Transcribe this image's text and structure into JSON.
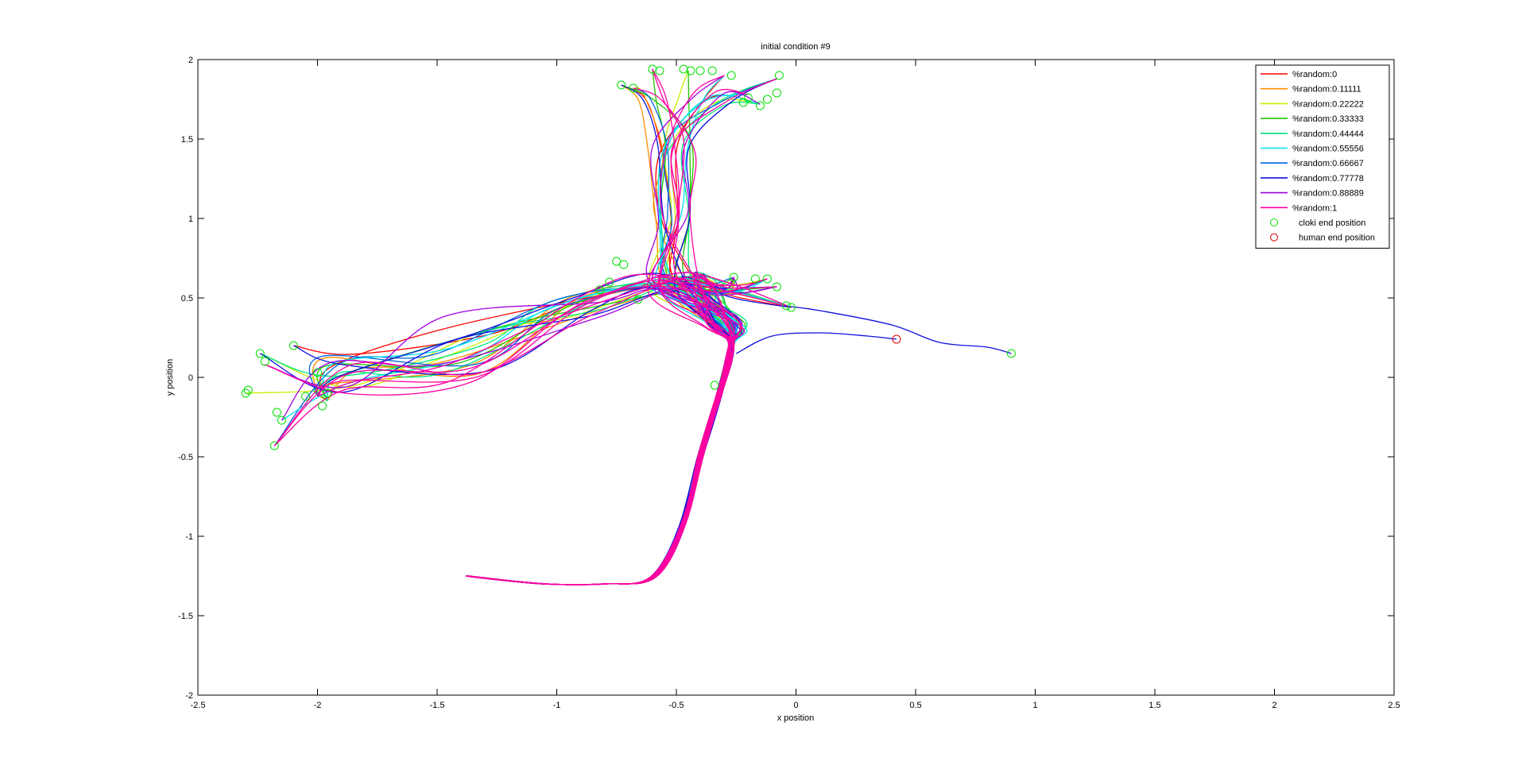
{
  "chart_data": {
    "type": "line",
    "title": "initial condition #9",
    "xlabel": "x position",
    "ylabel": "y position",
    "xlim": [
      -2.5,
      2.5
    ],
    "ylim": [
      -2,
      2
    ],
    "xticks": [
      -2.5,
      -2,
      -1.5,
      -1,
      -0.5,
      0,
      0.5,
      1,
      1.5,
      2,
      2.5
    ],
    "yticks": [
      -2,
      -1.5,
      -1,
      -0.5,
      0,
      0.5,
      1,
      1.5,
      2
    ],
    "grid": false,
    "legend_position": "top-right",
    "series": [
      {
        "name": "%random:0",
        "color": "#ff0000"
      },
      {
        "name": "%random:0.11111",
        "color": "#ff8c00"
      },
      {
        "name": "%random:0.22222",
        "color": "#c8f000"
      },
      {
        "name": "%random:0.33333",
        "color": "#22c800"
      },
      {
        "name": "%random:0.44444",
        "color": "#00e87a"
      },
      {
        "name": "%random:0.55556",
        "color": "#00e6f0"
      },
      {
        "name": "%random:0.66667",
        "color": "#0066e0"
      },
      {
        "name": "%random:0.77778",
        "color": "#1010e0"
      },
      {
        "name": "%random:0.88889",
        "color": "#a000e0"
      },
      {
        "name": "%random:1",
        "color": "#ff00a0"
      }
    ],
    "markers": [
      {
        "name": "cloki end position",
        "color": "#00e000",
        "points": [
          [
            -2.3,
            -0.1
          ],
          [
            -2.29,
            -0.08
          ],
          [
            -2.24,
            0.15
          ],
          [
            -2.22,
            0.1
          ],
          [
            -2.18,
            -0.43
          ],
          [
            -2.15,
            -0.27
          ],
          [
            -2.17,
            -0.22
          ],
          [
            -2.1,
            0.2
          ],
          [
            -2.05,
            -0.12
          ],
          [
            -1.98,
            -0.18
          ],
          [
            -1.96,
            -0.1
          ],
          [
            -2.0,
            0.03
          ],
          [
            -0.73,
            1.84
          ],
          [
            -0.68,
            1.82
          ],
          [
            -0.6,
            1.94
          ],
          [
            -0.57,
            1.93
          ],
          [
            -0.47,
            1.94
          ],
          [
            -0.44,
            1.93
          ],
          [
            -0.4,
            1.93
          ],
          [
            -0.35,
            1.93
          ],
          [
            -0.27,
            1.9
          ],
          [
            -0.22,
            1.73
          ],
          [
            -0.2,
            1.76
          ],
          [
            -0.15,
            1.71
          ],
          [
            -0.12,
            1.75
          ],
          [
            -0.08,
            1.79
          ],
          [
            -0.07,
            1.9
          ],
          [
            -0.75,
            0.73
          ],
          [
            -0.72,
            0.71
          ],
          [
            -0.82,
            0.55
          ],
          [
            -0.66,
            0.49
          ],
          [
            -0.78,
            0.6
          ],
          [
            -0.26,
            0.63
          ],
          [
            -0.17,
            0.62
          ],
          [
            -0.12,
            0.62
          ],
          [
            -0.08,
            0.57
          ],
          [
            -0.02,
            0.44
          ],
          [
            -0.04,
            0.45
          ],
          [
            -0.34,
            -0.05
          ],
          [
            0.9,
            0.15
          ]
        ]
      },
      {
        "name": "human end position",
        "color": "#e00000",
        "points": [
          [
            0.42,
            0.24
          ]
        ]
      }
    ]
  }
}
